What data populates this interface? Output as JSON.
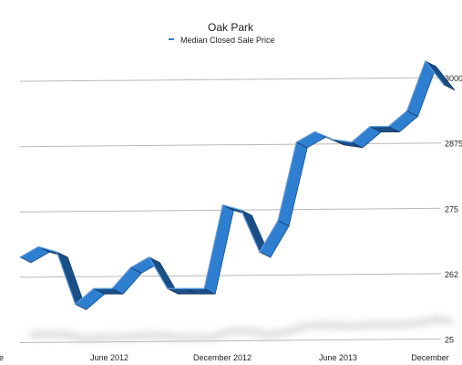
{
  "chart_data": {
    "type": "line",
    "style": "3d-ribbon",
    "title": "Oak Park",
    "legend": {
      "position": "top-center"
    },
    "grid": true,
    "series": [
      {
        "name": "Median Closed Sale Price",
        "color": "#2f7fd0",
        "x": [
          "Jan 2012",
          "Feb 2012",
          "Mar 2012",
          "Apr 2012",
          "May 2012",
          "Jun 2012",
          "Jul 2012",
          "Aug 2012",
          "Sep 2012",
          "Oct 2012",
          "Nov 2012",
          "Dec 2012",
          "Jan 2013",
          "Feb 2013",
          "Mar 2013",
          "Apr 2013",
          "May 2013",
          "Jun 2013",
          "Jul 2013",
          "Aug 2013",
          "Sep 2013",
          "Oct 2013",
          "Nov 2013",
          "Dec 2013"
        ],
        "values": [
          266000,
          268000,
          267000,
          257000,
          260000,
          260000,
          264000,
          266000,
          260000,
          260000,
          260000,
          276000,
          275000,
          267000,
          273000,
          288000,
          290000,
          288500,
          288000,
          291000,
          291000,
          294000,
          303500,
          299000
        ]
      }
    ],
    "x_ticks": [
      "June 2012",
      "December 2012",
      "June 2013",
      "December"
    ],
    "x_tick_first_partial": "e",
    "y_ticks": [
      "25",
      "262",
      "275",
      "2875",
      "3000"
    ],
    "y_tick_values": [
      250000,
      262500,
      275000,
      287500,
      300000
    ],
    "ylim": [
      250000,
      305000
    ]
  }
}
